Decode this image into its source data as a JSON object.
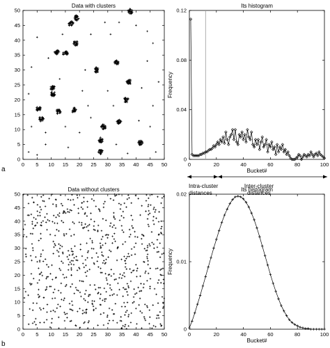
{
  "panel_labels": {
    "a": "a",
    "b": "b"
  },
  "annotations": {
    "intra_line1": "Intra-cluster",
    "intra_line2": "distances",
    "inter_line1": "Inter-cluster",
    "inter_line2": "distances"
  },
  "colors": {
    "ink": "#000000",
    "cutoff_line": "#9a9a9a"
  },
  "chart_data": [
    {
      "type": "scatter",
      "title": "Data with clusters",
      "xlabel": "",
      "ylabel": "",
      "xlim": [
        0,
        50
      ],
      "ylim": [
        0,
        50
      ],
      "xticks": [
        0,
        5,
        10,
        15,
        20,
        25,
        30,
        35,
        40,
        45,
        50
      ],
      "yticks": [
        0,
        5,
        10,
        15,
        20,
        25,
        30,
        35,
        40,
        45,
        50
      ],
      "grid": false,
      "marker": "plus",
      "clusters": [
        {
          "x": 17.0,
          "y": 45.5
        },
        {
          "x": 19.0,
          "y": 47.5
        },
        {
          "x": 38.0,
          "y": 49.7
        },
        {
          "x": 12.0,
          "y": 36.0
        },
        {
          "x": 15.0,
          "y": 35.5
        },
        {
          "x": 18.7,
          "y": 39.0
        },
        {
          "x": 33.0,
          "y": 32.5
        },
        {
          "x": 26.0,
          "y": 30.0
        },
        {
          "x": 37.5,
          "y": 26.0
        },
        {
          "x": 10.5,
          "y": 24.0
        },
        {
          "x": 10.5,
          "y": 22.0
        },
        {
          "x": 36.5,
          "y": 20.0
        },
        {
          "x": 5.5,
          "y": 17.0
        },
        {
          "x": 12.5,
          "y": 16.0
        },
        {
          "x": 18.0,
          "y": 16.5
        },
        {
          "x": 6.5,
          "y": 13.5
        },
        {
          "x": 34.0,
          "y": 12.5
        },
        {
          "x": 28.5,
          "y": 11.0
        },
        {
          "x": 27.5,
          "y": 6.5
        },
        {
          "x": 41.5,
          "y": 5.5
        },
        {
          "x": 27.5,
          "y": 2.5
        }
      ],
      "noise": [
        {
          "x": 5,
          "y": 41
        },
        {
          "x": 9,
          "y": 34
        },
        {
          "x": 3,
          "y": 31
        },
        {
          "x": 2,
          "y": 22
        },
        {
          "x": 3,
          "y": 11
        },
        {
          "x": 5,
          "y": 1.5
        },
        {
          "x": 2,
          "y": 2.5
        },
        {
          "x": 8,
          "y": 5
        },
        {
          "x": 15,
          "y": 11
        },
        {
          "x": 20,
          "y": 9
        },
        {
          "x": 23,
          "y": 18
        },
        {
          "x": 22,
          "y": 30
        },
        {
          "x": 24,
          "y": 42
        },
        {
          "x": 29,
          "y": 46
        },
        {
          "x": 31,
          "y": 42
        },
        {
          "x": 40,
          "y": 45
        },
        {
          "x": 44,
          "y": 43
        },
        {
          "x": 44,
          "y": 33
        },
        {
          "x": 42,
          "y": 24
        },
        {
          "x": 46,
          "y": 18
        },
        {
          "x": 41,
          "y": 13
        },
        {
          "x": 45,
          "y": 11
        },
        {
          "x": 32,
          "y": 18
        },
        {
          "x": 30,
          "y": 23
        },
        {
          "x": 13,
          "y": 27
        },
        {
          "x": 21,
          "y": 23
        },
        {
          "x": 16,
          "y": 4
        },
        {
          "x": 33,
          "y": 5
        },
        {
          "x": 37,
          "y": 2
        },
        {
          "x": 47,
          "y": 2.5
        },
        {
          "x": 48,
          "y": 26
        },
        {
          "x": 46,
          "y": 39
        },
        {
          "x": 14,
          "y": 42
        },
        {
          "x": 34,
          "y": 46
        },
        {
          "x": 8,
          "y": 9
        },
        {
          "x": 24,
          "y": 14
        }
      ]
    },
    {
      "type": "line",
      "title": "Its histogram",
      "xlabel": "Bucket#",
      "ylabel": "Frequency",
      "xlim": [
        0,
        100
      ],
      "ylim": [
        0,
        0.12
      ],
      "xticks": [
        0,
        20,
        40,
        60,
        80,
        100
      ],
      "yticks": [
        0,
        0.04,
        0.08,
        0.12
      ],
      "ytick_labels": [
        "0",
        "0.04",
        "0.08",
        "0.12"
      ],
      "cutoff_x": 12,
      "marker": "diamond",
      "x": [
        1,
        2,
        3,
        4,
        5,
        6,
        7,
        8,
        9,
        10,
        11,
        12,
        13,
        14,
        15,
        16,
        17,
        18,
        19,
        20,
        21,
        22,
        23,
        24,
        25,
        26,
        27,
        28,
        29,
        30,
        31,
        32,
        33,
        34,
        35,
        36,
        37,
        38,
        39,
        40,
        41,
        42,
        43,
        44,
        45,
        46,
        47,
        48,
        49,
        50,
        51,
        52,
        53,
        54,
        55,
        56,
        57,
        58,
        59,
        60,
        61,
        62,
        63,
        64,
        65,
        66,
        67,
        68,
        69,
        70,
        71,
        72,
        73,
        74,
        75,
        76,
        77,
        78,
        79,
        80,
        81,
        82,
        83,
        84,
        85,
        86,
        87,
        88,
        89,
        90,
        91,
        92,
        93,
        94,
        95,
        96,
        97,
        98,
        99,
        100
      ],
      "values": [
        0.113,
        0.004,
        0.003,
        0.003,
        0.003,
        0.003,
        0.003,
        0.004,
        0.004,
        0.005,
        0.005,
        0.006,
        0.006,
        0.007,
        0.008,
        0.008,
        0.009,
        0.011,
        0.01,
        0.012,
        0.014,
        0.012,
        0.016,
        0.014,
        0.018,
        0.013,
        0.022,
        0.016,
        0.012,
        0.018,
        0.02,
        0.024,
        0.016,
        0.024,
        0.014,
        0.012,
        0.02,
        0.018,
        0.022,
        0.016,
        0.02,
        0.014,
        0.024,
        0.018,
        0.016,
        0.022,
        0.012,
        0.01,
        0.016,
        0.012,
        0.016,
        0.008,
        0.014,
        0.018,
        0.01,
        0.012,
        0.016,
        0.006,
        0.012,
        0.01,
        0.014,
        0.008,
        0.01,
        0.004,
        0.012,
        0.006,
        0.01,
        0.008,
        0.012,
        0.006,
        0.008,
        0.004,
        0.006,
        0.003,
        0.001,
        0.0,
        0.0,
        0.0,
        0.001,
        0.002,
        0.004,
        0.003,
        0.0,
        0.002,
        0.004,
        0.003,
        0.002,
        0.004,
        0.003,
        0.006,
        0.004,
        0.002,
        0.004,
        0.005,
        0.003,
        0.006,
        0.004,
        0.003,
        0.002,
        0.001
      ]
    },
    {
      "type": "scatter",
      "title": "Data without clusters",
      "xlabel": "",
      "ylabel": "",
      "xlim": [
        0,
        50
      ],
      "ylim": [
        0,
        50
      ],
      "xticks": [
        0,
        5,
        10,
        15,
        20,
        25,
        30,
        35,
        40,
        45,
        50
      ],
      "yticks": [
        0,
        5,
        10,
        15,
        20,
        25,
        30,
        35,
        40,
        45,
        50
      ],
      "grid": false,
      "marker": "plus",
      "distribution": "uniform",
      "point_count": 700
    },
    {
      "type": "line",
      "title": "Its histogram",
      "xlabel": "Bucket#",
      "ylabel": "Frequency",
      "xlim": [
        0,
        100
      ],
      "ylim": [
        0,
        0.02
      ],
      "xticks": [
        0,
        20,
        40,
        60,
        80,
        100
      ],
      "yticks": [
        0,
        0.01,
        0.02
      ],
      "ytick_labels": [
        "0",
        "0.01",
        "0.02"
      ],
      "marker": "plus",
      "x": [
        0,
        2,
        4,
        6,
        8,
        10,
        12,
        14,
        16,
        18,
        20,
        22,
        24,
        26,
        28,
        30,
        32,
        34,
        36,
        38,
        40,
        42,
        44,
        46,
        48,
        50,
        52,
        54,
        56,
        58,
        60,
        62,
        64,
        66,
        68,
        70,
        72,
        74,
        76,
        78,
        80,
        82,
        84,
        86,
        88,
        90,
        92,
        94,
        96,
        98,
        100
      ],
      "values": [
        0.0002,
        0.0012,
        0.0024,
        0.0037,
        0.005,
        0.0064,
        0.0078,
        0.0092,
        0.0106,
        0.012,
        0.0133,
        0.0146,
        0.0158,
        0.0169,
        0.0178,
        0.0186,
        0.0192,
        0.0196,
        0.0197,
        0.0196,
        0.0193,
        0.0188,
        0.0181,
        0.0172,
        0.0162,
        0.015,
        0.0137,
        0.0123,
        0.0109,
        0.0095,
        0.0081,
        0.0068,
        0.0056,
        0.0045,
        0.0035,
        0.0027,
        0.002,
        0.0014,
        0.001,
        0.0007,
        0.0005,
        0.0003,
        0.0002,
        0.0001,
        0.0001,
        0.0,
        0.0,
        0.0,
        0.0,
        0.0,
        0.0
      ]
    }
  ]
}
